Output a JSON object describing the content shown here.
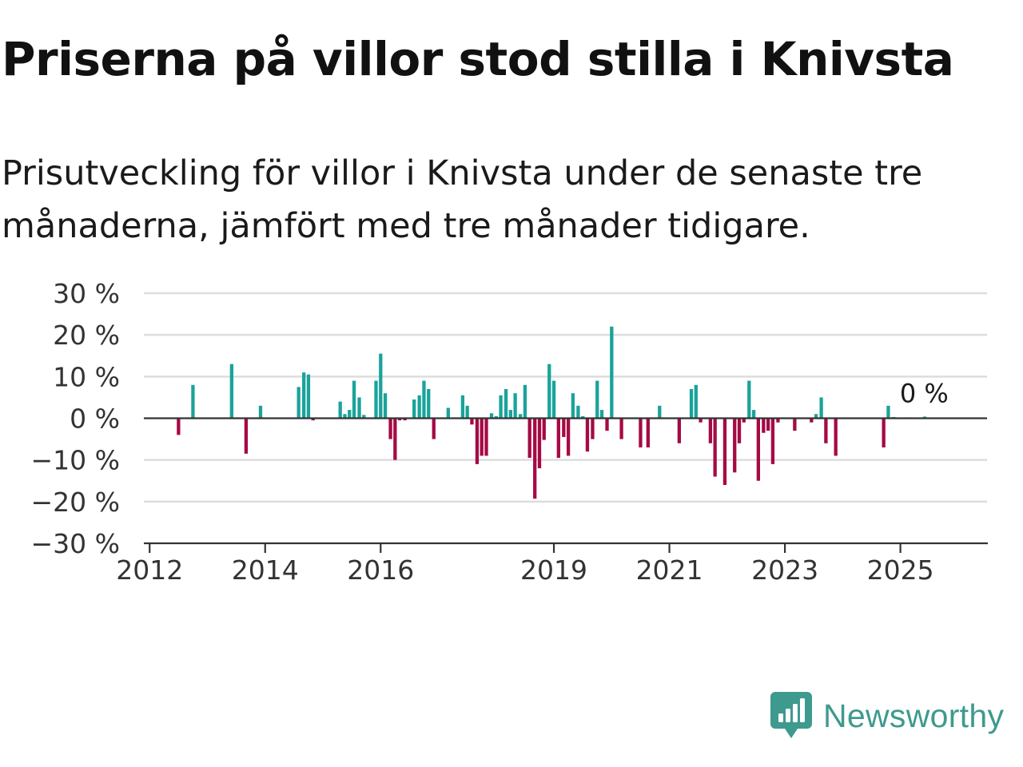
{
  "title": "Priserna på villor stod stilla i Knivsta",
  "subtitle": "Prisutveckling för villor i Knivsta under de senaste tre månaderna, jämfört med tre månader tidigare.",
  "brand": {
    "name": "Newsworthy",
    "icon": "newsworthy-logo-icon",
    "color": "#3e9a8e"
  },
  "chart_data": {
    "type": "bar",
    "ylim": [
      -30,
      30
    ],
    "yticks": [
      30,
      20,
      10,
      0,
      -10,
      -20,
      -30
    ],
    "ytick_labels": [
      "30 %",
      "20 %",
      "10 %",
      "0 %",
      "−10 %",
      "−20 %",
      "−30 %"
    ],
    "xlim": [
      2011.9,
      2026.5
    ],
    "xticks": [
      2012,
      2014,
      2016,
      2019,
      2021,
      2023,
      2025
    ],
    "xtick_labels": [
      "2012",
      "2014",
      "2016",
      "2019",
      "2021",
      "2023",
      "2025"
    ],
    "grid": true,
    "colors": {
      "positive": "#1aa39a",
      "negative": "#a50a45"
    },
    "annotation": {
      "text": "0 %",
      "x": 2025.3,
      "y": 0
    },
    "x": [
      2012.5,
      2012.75,
      2013.42,
      2013.67,
      2013.92,
      2014.58,
      2014.67,
      2014.75,
      2014.83,
      2015.3,
      2015.38,
      2015.46,
      2015.54,
      2015.63,
      2015.71,
      2015.92,
      2016.0,
      2016.08,
      2016.17,
      2016.25,
      2016.33,
      2016.42,
      2016.58,
      2016.67,
      2016.75,
      2016.83,
      2016.92,
      2017.17,
      2017.42,
      2017.5,
      2017.58,
      2017.67,
      2017.75,
      2017.83,
      2017.92,
      2018.0,
      2018.08,
      2018.17,
      2018.25,
      2018.33,
      2018.42,
      2018.5,
      2018.58,
      2018.67,
      2018.75,
      2018.83,
      2018.92,
      2019.0,
      2019.08,
      2019.17,
      2019.25,
      2019.33,
      2019.42,
      2019.5,
      2019.58,
      2019.67,
      2019.75,
      2019.83,
      2019.92,
      2020.0,
      2020.17,
      2020.5,
      2020.63,
      2020.83,
      2021.17,
      2021.38,
      2021.46,
      2021.54,
      2021.71,
      2021.79,
      2021.96,
      2022.13,
      2022.21,
      2022.29,
      2022.38,
      2022.46,
      2022.54,
      2022.63,
      2022.71,
      2022.79,
      2022.88,
      2023.17,
      2023.46,
      2023.54,
      2023.63,
      2023.71,
      2023.88,
      2024.71,
      2024.79,
      2024.88,
      2024.96,
      2025.04,
      2025.13,
      2025.21,
      2025.29,
      2025.42
    ],
    "values": [
      -4,
      8,
      13,
      -8.5,
      3,
      7.5,
      11,
      10.5,
      -0.5,
      4,
      1,
      2,
      9,
      5,
      0.8,
      9,
      15.5,
      6,
      -5,
      -10,
      -0.5,
      -0.5,
      4.5,
      5.5,
      9,
      7,
      -5,
      2.5,
      5.5,
      3,
      -1.5,
      -11,
      -9,
      -9,
      1.2,
      0.5,
      5.5,
      7,
      2,
      6,
      1,
      8,
      -9.5,
      -19.3,
      -12,
      -5.2,
      13,
      9,
      -9.5,
      -4.5,
      -9,
      6,
      3,
      0.5,
      -8,
      -5,
      9,
      2,
      -3,
      22,
      -5,
      -7,
      -7,
      3,
      -6,
      7,
      8,
      -1,
      -6,
      -14,
      -16,
      -13,
      -6,
      -1,
      9,
      2,
      -15,
      -3.5,
      -3,
      -11,
      -1,
      -3,
      -1,
      1,
      5,
      -6,
      -9,
      -7,
      3,
      0.3,
      0,
      0,
      0.2,
      0.1,
      0.1,
      0.4
    ]
  }
}
